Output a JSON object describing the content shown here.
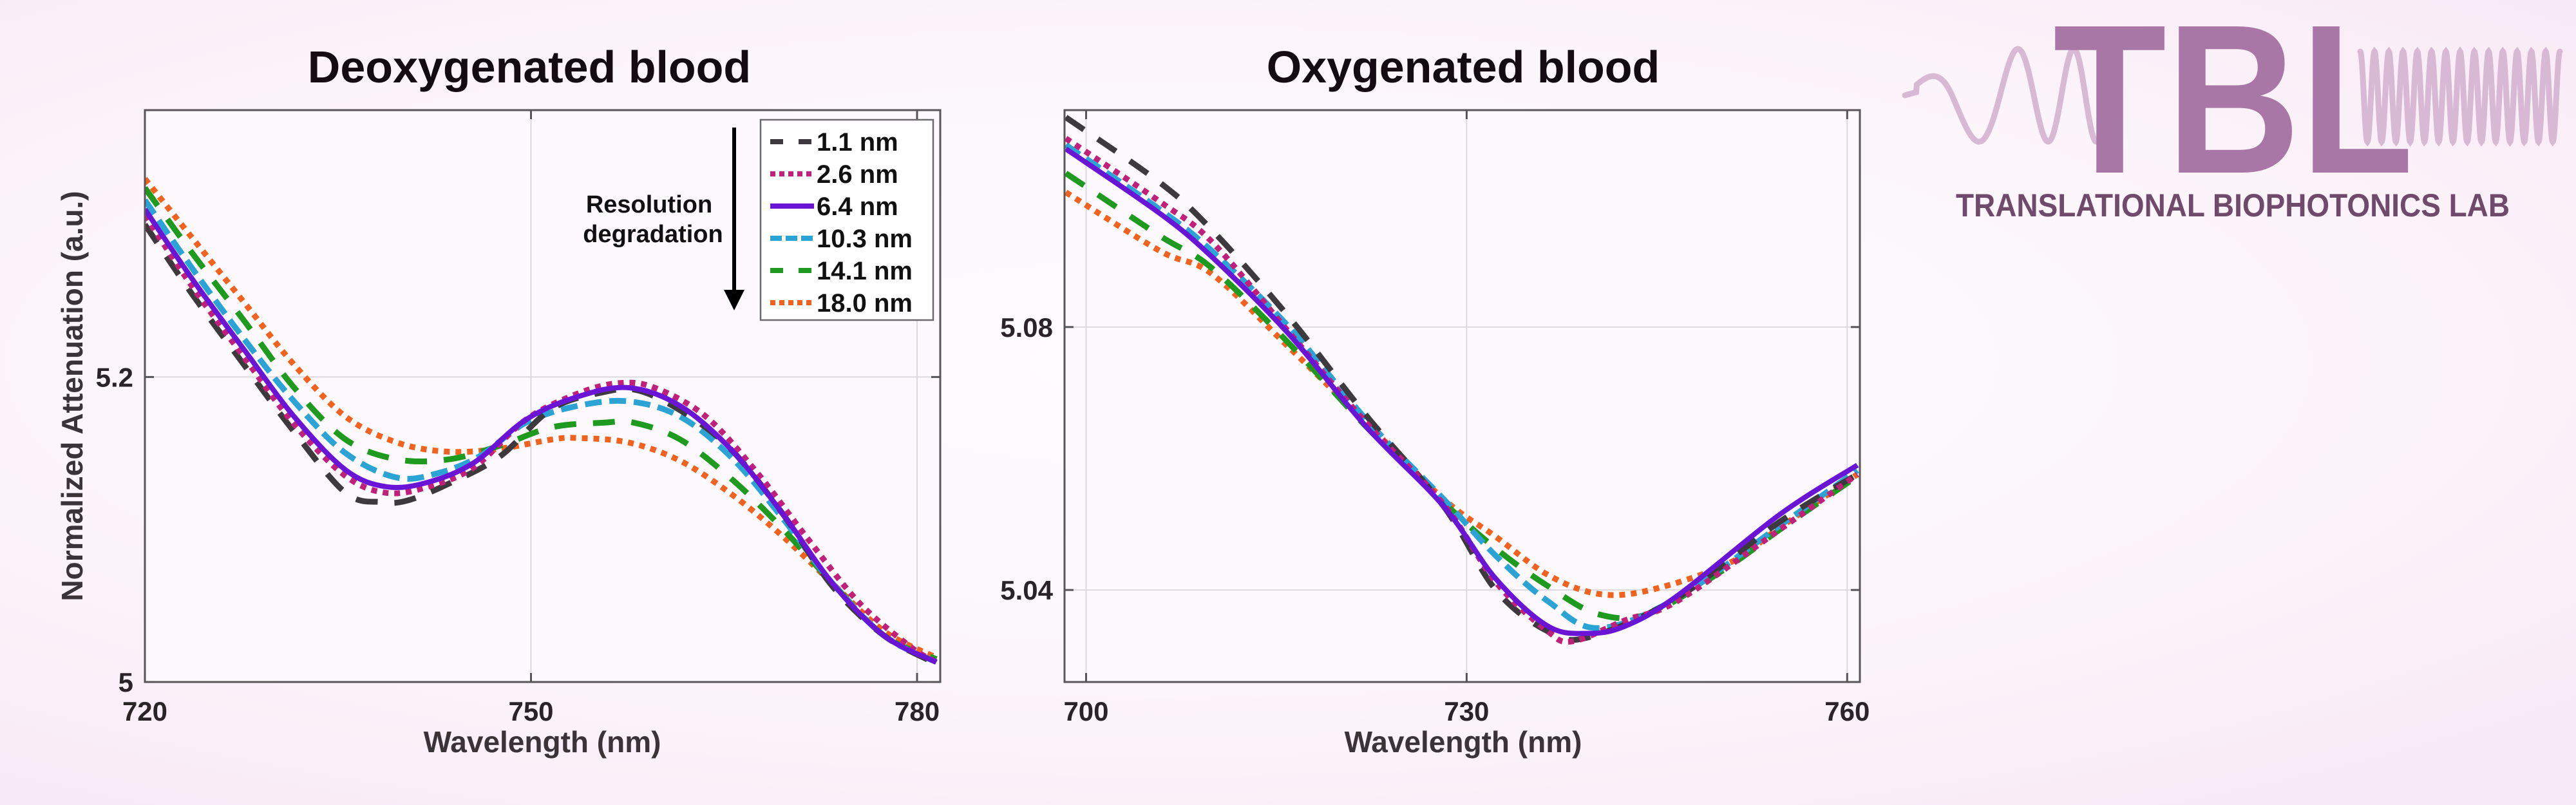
{
  "logo": {
    "letters": "TBL",
    "subtitle": "TRANSLATIONAL BIOPHOTONICS LAB",
    "letter_color": "#a977a5",
    "wave_color": "#d8b9d3",
    "subtitle_color": "#6f4a6b"
  },
  "resolution_annotation": {
    "line1": "Resolution",
    "line2": "degradation"
  },
  "series_styles": [
    {
      "name": "1.1 nm",
      "color": "#3c3a3c",
      "dash": "dashed-long"
    },
    {
      "name": "2.6 nm",
      "color": "#c0207a",
      "dash": "dotted"
    },
    {
      "name": "6.4 nm",
      "color": "#6a14d6",
      "dash": "solid"
    },
    {
      "name": "10.3 nm",
      "color": "#2ba3d4",
      "dash": "dashed"
    },
    {
      "name": "14.1 nm",
      "color": "#1e9a1e",
      "dash": "dashed-long"
    },
    {
      "name": "18.0 nm",
      "color": "#f0621e",
      "dash": "dotted"
    }
  ],
  "chart_data": [
    {
      "type": "line",
      "title": "Deoxygenated blood",
      "xlabel": "Wavelength (nm)",
      "ylabel": "Normalized Attenuation (a.u.)",
      "xlim": [
        720,
        781.8
      ],
      "ylim": [
        5.0,
        5.375
      ],
      "xticks": [
        720,
        750,
        780
      ],
      "xtick_labels": [
        "720",
        "750",
        "780"
      ],
      "yticks": [
        5.0,
        5.2
      ],
      "ytick_labels": [
        "5",
        "5.2"
      ],
      "grid": true,
      "legend": {
        "placement": "top-right",
        "entries": [
          "1.1 nm",
          "2.6 nm",
          "6.4 nm",
          "10.3 nm",
          "14.1 nm",
          "18.0 nm"
        ]
      },
      "annotation": "Resolution degradation (arrow pointing down)",
      "series": [
        {
          "name": "1.1 nm",
          "x": [
            720.0,
            723.7,
            727.7,
            731.6,
            735.6,
            738.4,
            740.4,
            743.6,
            747.6,
            751.6,
            755.6,
            758.4,
            762.0,
            765.6,
            769.5,
            773.5,
            777.5,
            781.5
          ],
          "y": [
            5.3,
            5.254,
            5.208,
            5.164,
            5.124,
            5.118,
            5.119,
            5.13,
            5.148,
            5.179,
            5.19,
            5.191,
            5.176,
            5.152,
            5.111,
            5.062,
            5.03,
            5.012
          ]
        },
        {
          "name": "2.6 nm",
          "x": [
            720.0,
            723.7,
            727.7,
            731.6,
            735.6,
            738.8,
            742.0,
            745.6,
            749.6,
            753.6,
            756.8,
            759.6,
            763.6,
            767.6,
            771.5,
            775.5,
            779.5,
            781.5
          ],
          "y": [
            5.306,
            5.259,
            5.213,
            5.169,
            5.135,
            5.124,
            5.128,
            5.141,
            5.172,
            5.189,
            5.196,
            5.193,
            5.174,
            5.137,
            5.094,
            5.052,
            5.023,
            5.013
          ]
        },
        {
          "name": "6.4 nm",
          "x": [
            720.0,
            723.7,
            727.7,
            731.6,
            735.6,
            738.8,
            742.0,
            745.6,
            749.6,
            753.6,
            757.6,
            761.6,
            765.6,
            769.5,
            773.5,
            777.5,
            781.5
          ],
          "y": [
            5.31,
            5.264,
            5.218,
            5.174,
            5.139,
            5.128,
            5.131,
            5.144,
            5.172,
            5.187,
            5.193,
            5.181,
            5.152,
            5.111,
            5.064,
            5.03,
            5.013
          ]
        },
        {
          "name": "10.3 nm",
          "x": [
            720.0,
            723.7,
            727.7,
            731.6,
            735.6,
            739.6,
            742.8,
            746.0,
            749.6,
            753.6,
            757.6,
            761.6,
            765.6,
            769.5,
            773.5,
            777.5,
            781.5
          ],
          "y": [
            5.316,
            5.271,
            5.225,
            5.184,
            5.15,
            5.134,
            5.137,
            5.148,
            5.17,
            5.181,
            5.184,
            5.174,
            5.147,
            5.108,
            5.064,
            5.03,
            5.013
          ]
        },
        {
          "name": "14.1 nm",
          "x": [
            720.0,
            723.7,
            727.7,
            731.6,
            735.6,
            739.6,
            743.6,
            747.6,
            751.6,
            755.6,
            758.0,
            761.6,
            765.6,
            769.5,
            773.5,
            777.5,
            781.5
          ],
          "y": [
            5.324,
            5.281,
            5.237,
            5.193,
            5.159,
            5.146,
            5.146,
            5.155,
            5.167,
            5.17,
            5.17,
            5.159,
            5.133,
            5.101,
            5.064,
            5.03,
            5.015
          ]
        },
        {
          "name": "18.0 nm",
          "x": [
            720.0,
            723.7,
            727.7,
            731.6,
            735.6,
            739.6,
            743.6,
            747.6,
            751.6,
            753.6,
            757.6,
            761.6,
            765.6,
            769.5,
            773.5,
            777.5,
            781.5
          ],
          "y": [
            5.33,
            5.291,
            5.249,
            5.208,
            5.174,
            5.157,
            5.151,
            5.153,
            5.159,
            5.16,
            5.157,
            5.145,
            5.123,
            5.096,
            5.064,
            5.033,
            5.016
          ]
        }
      ]
    },
    {
      "type": "line",
      "title": "Oxygenated blood",
      "xlabel": "Wavelength (nm)",
      "ylabel": "",
      "xlim": [
        698.3,
        761.0
      ],
      "ylim": [
        5.026,
        5.113
      ],
      "xticks": [
        700,
        730,
        760
      ],
      "xtick_labels": [
        "700",
        "730",
        "760"
      ],
      "yticks": [
        5.04,
        5.08
      ],
      "ytick_labels": [
        "5.04",
        "5.08"
      ],
      "grid": true,
      "series": [
        {
          "name": "1.1 nm",
          "x": [
            698.4,
            705.8,
            709.9,
            716.0,
            722.1,
            728.2,
            732.3,
            736.4,
            739.6,
            746.6,
            754.7,
            760.8
          ],
          "y": [
            5.1119,
            5.102,
            5.0948,
            5.0815,
            5.0665,
            5.0527,
            5.04,
            5.0337,
            5.0328,
            5.0388,
            5.0504,
            5.0576
          ]
        },
        {
          "name": "2.6 nm",
          "x": [
            698.4,
            705.8,
            709.9,
            716.0,
            722.1,
            728.2,
            732.3,
            736.4,
            738.4,
            742.5,
            746.6,
            754.7,
            760.8
          ],
          "y": [
            5.1087,
            5.0991,
            5.093,
            5.0792,
            5.0654,
            5.053,
            5.0412,
            5.0337,
            5.0322,
            5.0354,
            5.0383,
            5.0492,
            5.0576
          ]
        },
        {
          "name": "6.4 nm",
          "x": [
            698.4,
            705.8,
            709.9,
            716.0,
            722.1,
            728.2,
            732.3,
            736.4,
            739.6,
            742.5,
            746.6,
            754.7,
            760.8
          ],
          "y": [
            5.1071,
            5.0973,
            5.0907,
            5.0789,
            5.0648,
            5.0527,
            5.0417,
            5.0345,
            5.0334,
            5.0345,
            5.0391,
            5.0515,
            5.059
          ]
        },
        {
          "name": "10.3 nm",
          "x": [
            698.4,
            705.8,
            709.9,
            716.0,
            722.1,
            728.2,
            732.3,
            736.4,
            740.4,
            746.6,
            754.7,
            760.8
          ],
          "y": [
            5.1077,
            5.0979,
            5.0916,
            5.08,
            5.0659,
            5.0538,
            5.0452,
            5.0383,
            5.0342,
            5.0388,
            5.0498,
            5.0582
          ]
        },
        {
          "name": "14.1 nm",
          "x": [
            698.4,
            705.8,
            709.9,
            716.0,
            722.1,
            728.2,
            732.3,
            736.4,
            740.4,
            744.5,
            750.6,
            754.7,
            760.8
          ],
          "y": [
            5.1034,
            5.0939,
            5.089,
            5.0775,
            5.0648,
            5.0533,
            5.0463,
            5.0406,
            5.0363,
            5.0365,
            5.0435,
            5.0492,
            5.0573
          ]
        },
        {
          "name": "18.0 nm",
          "x": [
            698.4,
            705.8,
            709.9,
            716.0,
            722.1,
            728.2,
            732.3,
            736.4,
            740.4,
            744.5,
            750.6,
            754.7,
            760.8
          ],
          "y": [
            5.1005,
            5.0916,
            5.0881,
            5.0769,
            5.0654,
            5.0538,
            5.0481,
            5.0423,
            5.0394,
            5.04,
            5.044,
            5.0495,
            5.0576
          ]
        }
      ]
    }
  ]
}
